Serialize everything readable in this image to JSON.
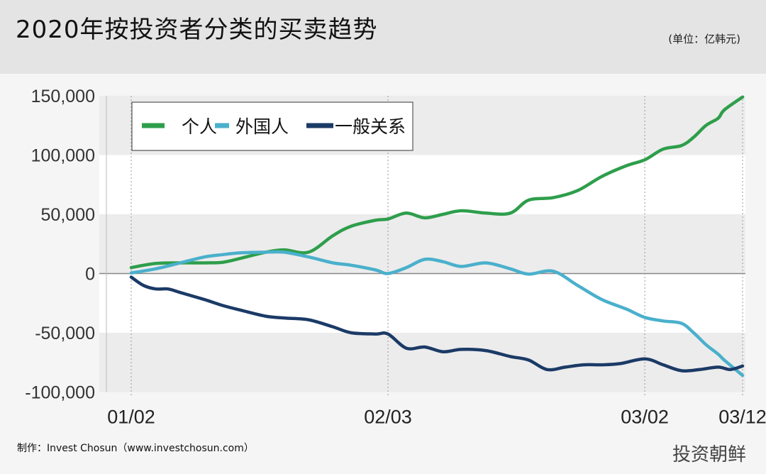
{
  "header": {
    "title": "2020年按投资者分类的买卖趋势",
    "unit": "(单位：亿韩元)"
  },
  "footer": {
    "credit": "制作：Invest Chosun（www.investchosun.com）",
    "brand": "投资朝鲜"
  },
  "colors": {
    "individual": "#2e9e4b",
    "foreign": "#4ab0cc",
    "institution": "#1b3a66",
    "band": "#ececec",
    "zero_line": "#888888"
  },
  "chart_data": {
    "type": "line",
    "title": "2020年按投资者分类的买卖趋势",
    "unit": "(单位：亿韩元)",
    "ylim": [
      -100000,
      150000
    ],
    "yticks": [
      "150,000",
      "100,000",
      "50,000",
      "0",
      "-50,000",
      "-100,000"
    ],
    "ytick_values": [
      150000,
      100000,
      50000,
      0,
      -50000,
      -100000
    ],
    "xticks": [
      {
        "label": "01/02",
        "x": 0
      },
      {
        "label": "02/03",
        "x": 42
      },
      {
        "label": "03/02",
        "x": 84
      },
      {
        "label": "03/12",
        "x": 100
      }
    ],
    "xlim": [
      0,
      100
    ],
    "legend": "top-left",
    "series": [
      {
        "name": "个人",
        "color": "#2e9e4b",
        "points": [
          [
            0,
            5000
          ],
          [
            4,
            8500
          ],
          [
            8,
            9000
          ],
          [
            12,
            9000
          ],
          [
            15,
            9500
          ],
          [
            18,
            13000
          ],
          [
            22,
            18000
          ],
          [
            25,
            20000
          ],
          [
            29,
            18000
          ],
          [
            33,
            32000
          ],
          [
            36,
            40000
          ],
          [
            40,
            45000
          ],
          [
            42,
            46000
          ],
          [
            45,
            51000
          ],
          [
            48,
            47000
          ],
          [
            51,
            50000
          ],
          [
            54,
            53000
          ],
          [
            58,
            51000
          ],
          [
            62,
            51000
          ],
          [
            65,
            62000
          ],
          [
            69,
            64000
          ],
          [
            73,
            70000
          ],
          [
            77,
            82000
          ],
          [
            81,
            91000
          ],
          [
            84,
            96000
          ],
          [
            87,
            105000
          ],
          [
            90,
            108000
          ],
          [
            92,
            115000
          ],
          [
            94,
            125000
          ],
          [
            96,
            131000
          ],
          [
            97,
            138000
          ],
          [
            100,
            149000
          ]
        ]
      },
      {
        "name": "外国人",
        "color": "#4ab0cc",
        "points": [
          [
            0,
            500
          ],
          [
            4,
            4000
          ],
          [
            8,
            9000
          ],
          [
            12,
            14000
          ],
          [
            15,
            16000
          ],
          [
            18,
            17500
          ],
          [
            22,
            18000
          ],
          [
            25,
            18000
          ],
          [
            29,
            14000
          ],
          [
            33,
            9000
          ],
          [
            36,
            7000
          ],
          [
            40,
            3000
          ],
          [
            42,
            0
          ],
          [
            45,
            5000
          ],
          [
            48,
            12000
          ],
          [
            51,
            10000
          ],
          [
            54,
            6000
          ],
          [
            58,
            9000
          ],
          [
            62,
            4000
          ],
          [
            65,
            -500
          ],
          [
            69,
            2000
          ],
          [
            73,
            -10000
          ],
          [
            77,
            -22000
          ],
          [
            81,
            -30000
          ],
          [
            84,
            -37000
          ],
          [
            87,
            -40000
          ],
          [
            90,
            -42000
          ],
          [
            92,
            -50000
          ],
          [
            94,
            -60000
          ],
          [
            96,
            -68000
          ],
          [
            97,
            -73000
          ],
          [
            100,
            -86000
          ]
        ]
      },
      {
        "name": "一般关系",
        "color": "#1b3a66",
        "points": [
          [
            0,
            -3000
          ],
          [
            2,
            -10000
          ],
          [
            4,
            -13000
          ],
          [
            6,
            -13000
          ],
          [
            8,
            -16000
          ],
          [
            12,
            -22000
          ],
          [
            15,
            -27000
          ],
          [
            18,
            -31000
          ],
          [
            22,
            -36000
          ],
          [
            25,
            -37500
          ],
          [
            29,
            -39000
          ],
          [
            33,
            -45000
          ],
          [
            36,
            -50000
          ],
          [
            40,
            -51000
          ],
          [
            42,
            -51000
          ],
          [
            45,
            -63000
          ],
          [
            48,
            -62000
          ],
          [
            51,
            -66000
          ],
          [
            54,
            -64000
          ],
          [
            58,
            -65000
          ],
          [
            62,
            -70000
          ],
          [
            65,
            -73000
          ],
          [
            68,
            -81000
          ],
          [
            71,
            -79000
          ],
          [
            74,
            -77000
          ],
          [
            77,
            -77000
          ],
          [
            80,
            -76000
          ],
          [
            84,
            -72000
          ],
          [
            87,
            -77000
          ],
          [
            90,
            -82000
          ],
          [
            93,
            -81000
          ],
          [
            96,
            -79000
          ],
          [
            98,
            -81000
          ],
          [
            100,
            -78000
          ]
        ]
      }
    ]
  }
}
